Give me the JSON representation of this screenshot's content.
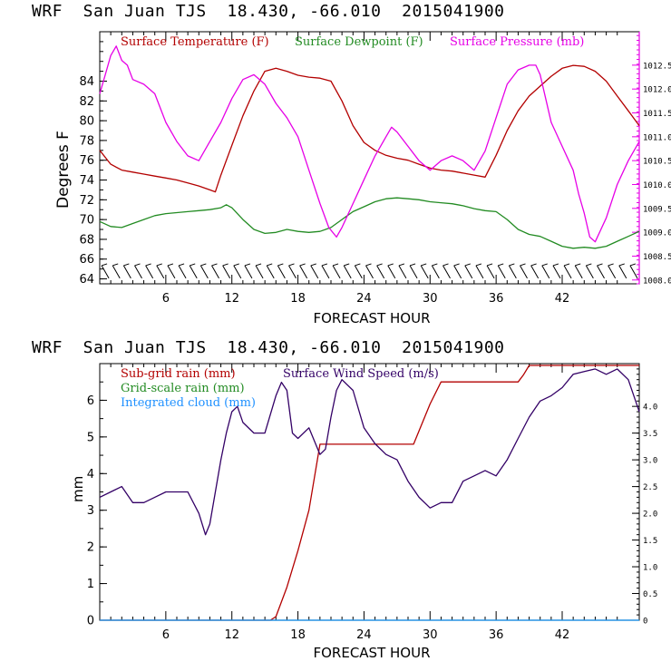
{
  "chart_data": [
    {
      "type": "line",
      "title": "WRF  San Juan TJS  18.430, -66.010  2015041900",
      "xlabel": "FORECAST HOUR",
      "ylabel": "Degrees F",
      "xlim": [
        0,
        49
      ],
      "ylim": [
        63.5,
        89
      ],
      "xticks": [
        6,
        12,
        18,
        24,
        30,
        36,
        42
      ],
      "xtick_labels": [
        "6",
        "12",
        "18",
        "24",
        "30",
        "36",
        "42"
      ],
      "yticks": [
        64,
        66,
        68,
        70,
        72,
        74,
        76,
        78,
        80,
        82,
        84
      ],
      "ytick_labels": [
        "64",
        "66",
        "68",
        "70",
        "72",
        "74",
        "76",
        "78",
        "80",
        "82",
        "84"
      ],
      "y2lim": [
        1007.92,
        1013.2
      ],
      "y2ticks": [
        1008.0,
        1008.5,
        1009.0,
        1009.5,
        1010.0,
        1010.5,
        1011.0,
        1011.5,
        1012.0,
        1012.5
      ],
      "y2tick_labels": [
        "1008.0",
        "1008.5",
        "1009.0",
        "1009.5",
        "1010.0",
        "1010.5",
        "1011.0",
        "1011.5",
        "1012.0",
        "1012.5"
      ],
      "series": [
        {
          "name": "Surface Temperature (F)",
          "color": "#b30000",
          "axis": "left",
          "x": [
            0,
            1,
            2,
            3,
            4,
            5,
            6,
            7,
            8,
            9,
            10,
            10.5,
            11,
            12,
            13,
            14,
            15,
            16,
            17,
            18,
            19,
            20,
            21,
            22,
            23,
            24,
            25,
            26,
            27,
            28,
            29,
            30,
            31,
            32,
            33,
            34,
            35,
            36,
            37,
            38,
            39,
            40,
            41,
            42,
            43,
            44,
            45,
            46,
            47,
            48,
            49
          ],
          "values": [
            77.0,
            75.6,
            75.0,
            74.8,
            74.6,
            74.4,
            74.2,
            74.0,
            73.7,
            73.4,
            73.0,
            72.8,
            74.5,
            77.5,
            80.5,
            83.0,
            85.0,
            85.3,
            85.0,
            84.6,
            84.4,
            84.3,
            84.0,
            82.0,
            79.5,
            77.8,
            77.0,
            76.5,
            76.2,
            76.0,
            75.6,
            75.2,
            75.0,
            74.9,
            74.7,
            74.5,
            74.3,
            76.5,
            79.0,
            81.0,
            82.5,
            83.5,
            84.5,
            85.3,
            85.6,
            85.5,
            85.0,
            84.0,
            82.5,
            81.0,
            79.5
          ]
        },
        {
          "name": "Surface Dewpoint (F)",
          "color": "#228b22",
          "axis": "left",
          "x": [
            0,
            1,
            2,
            3,
            4,
            5,
            6,
            7,
            8,
            9,
            10,
            11,
            11.5,
            12,
            13,
            14,
            15,
            16,
            17,
            18,
            19,
            20,
            21,
            22,
            23,
            24,
            25,
            26,
            27,
            28,
            29,
            30,
            31,
            32,
            33,
            34,
            35,
            36,
            37,
            38,
            39,
            40,
            41,
            42,
            43,
            44,
            45,
            46,
            47,
            48,
            49
          ],
          "values": [
            69.8,
            69.3,
            69.2,
            69.6,
            70.0,
            70.4,
            70.6,
            70.7,
            70.8,
            70.9,
            71.0,
            71.2,
            71.5,
            71.2,
            70.0,
            69.0,
            68.6,
            68.7,
            69.0,
            68.8,
            68.7,
            68.8,
            69.2,
            70.0,
            70.8,
            71.3,
            71.8,
            72.1,
            72.2,
            72.1,
            72.0,
            71.8,
            71.7,
            71.6,
            71.4,
            71.1,
            70.9,
            70.8,
            70.0,
            69.0,
            68.5,
            68.3,
            67.8,
            67.3,
            67.1,
            67.2,
            67.1,
            67.3,
            67.8,
            68.3,
            68.8
          ]
        },
        {
          "name": "Surface Pressure (mb)",
          "color": "#e600e6",
          "axis": "right",
          "x": [
            0,
            0.5,
            1,
            1.5,
            2,
            2.5,
            3,
            4,
            5,
            6,
            7,
            8,
            9,
            10,
            11,
            12,
            13,
            14,
            15,
            16,
            17,
            18,
            19,
            20,
            20.8,
            21.5,
            22,
            23,
            24,
            25,
            26,
            26.5,
            27,
            28,
            29,
            30,
            31,
            32,
            33,
            34,
            35,
            36,
            37,
            38,
            39,
            39.6,
            40,
            40.5,
            41,
            42,
            43,
            43.5,
            44,
            44.5,
            45,
            46,
            47,
            48,
            49
          ],
          "values": [
            1011.9,
            1012.3,
            1012.7,
            1012.9,
            1012.6,
            1012.5,
            1012.2,
            1012.1,
            1011.9,
            1011.3,
            1010.9,
            1010.6,
            1010.5,
            1010.9,
            1011.3,
            1011.8,
            1012.2,
            1012.3,
            1012.1,
            1011.7,
            1011.4,
            1011.0,
            1010.3,
            1009.6,
            1009.1,
            1008.9,
            1009.1,
            1009.6,
            1010.1,
            1010.6,
            1011.0,
            1011.2,
            1011.1,
            1010.8,
            1010.5,
            1010.3,
            1010.5,
            1010.6,
            1010.5,
            1010.3,
            1010.7,
            1011.4,
            1012.1,
            1012.4,
            1012.5,
            1012.5,
            1012.3,
            1011.8,
            1011.3,
            1010.8,
            1010.3,
            1009.8,
            1009.4,
            1008.9,
            1008.8,
            1009.3,
            1010.0,
            1010.5,
            1010.9
          ]
        }
      ],
      "wind_barbs": "row of wind barbs along the bottom of the plot, every 1 forecast hour"
    },
    {
      "type": "line",
      "title": "WRF  San Juan TJS  18.430, -66.010  2015041900",
      "xlabel": "FORECAST HOUR",
      "ylabel": "mm",
      "xlim": [
        0,
        49
      ],
      "ylim": [
        0,
        7
      ],
      "xticks": [
        6,
        12,
        18,
        24,
        30,
        36,
        42
      ],
      "xtick_labels": [
        "6",
        "12",
        "18",
        "24",
        "30",
        "36",
        "42"
      ],
      "yticks": [
        0,
        1,
        2,
        3,
        4,
        5,
        6
      ],
      "ytick_labels": [
        "0",
        "1",
        "2",
        "3",
        "4",
        "5",
        "6"
      ],
      "y2lim": [
        0,
        4.8
      ],
      "y2ticks": [
        0,
        0.5,
        1.0,
        1.5,
        2.0,
        2.5,
        3.0,
        3.5,
        4.0
      ],
      "y2tick_labels": [
        "0",
        "0.5",
        "1.0",
        "1.5",
        "2.0",
        "2.5",
        "3.0",
        "3.5",
        "4.0"
      ],
      "series": [
        {
          "name": "Sub-grid rain (mm)",
          "color": "#b30000",
          "axis": "left",
          "x": [
            0,
            15.5,
            16,
            17,
            18,
            19,
            19.5,
            20,
            28.5,
            30,
            31,
            32,
            38,
            38.5,
            39,
            49
          ],
          "values": [
            0,
            0,
            0.1,
            0.9,
            1.9,
            3.0,
            3.9,
            4.8,
            4.8,
            5.9,
            6.5,
            6.5,
            6.5,
            6.7,
            6.95,
            6.95
          ]
        },
        {
          "name": "Grid-scale rain (mm)",
          "color": "#228b22",
          "axis": "left",
          "x": [
            0,
            49
          ],
          "values": [
            0,
            0
          ]
        },
        {
          "name": "Integrated cloud (mm)",
          "color": "#1e90ff",
          "axis": "left",
          "x": [
            0,
            49
          ],
          "values": [
            0,
            0
          ]
        },
        {
          "name": "Surface Wind Speed (m/s)",
          "color": "#330066",
          "axis": "right",
          "x": [
            0,
            1,
            2,
            3,
            4,
            5,
            6,
            7,
            8,
            9,
            9.6,
            10,
            10.5,
            11,
            11.5,
            12,
            12.5,
            13,
            14,
            15,
            16,
            16.5,
            17,
            17.5,
            18,
            19,
            20,
            20.5,
            21,
            21.5,
            22,
            23,
            24,
            25,
            26,
            27,
            28,
            29,
            30,
            31,
            32,
            33,
            34,
            35,
            36,
            37,
            38,
            39,
            40,
            41,
            42,
            43,
            44,
            45,
            46,
            47,
            48,
            49
          ],
          "values": [
            2.3,
            2.4,
            2.5,
            2.2,
            2.2,
            2.3,
            2.4,
            2.4,
            2.4,
            2.0,
            1.6,
            1.8,
            2.4,
            3.0,
            3.5,
            3.9,
            4.0,
            3.7,
            3.5,
            3.5,
            4.2,
            4.45,
            4.3,
            3.5,
            3.4,
            3.6,
            3.1,
            3.2,
            3.8,
            4.3,
            4.5,
            4.3,
            3.6,
            3.3,
            3.1,
            3.0,
            2.6,
            2.3,
            2.1,
            2.2,
            2.2,
            2.6,
            2.7,
            2.8,
            2.7,
            3.0,
            3.4,
            3.8,
            4.1,
            4.2,
            4.35,
            4.6,
            4.65,
            4.7,
            4.6,
            4.7,
            4.5,
            3.9
          ]
        }
      ]
    }
  ]
}
